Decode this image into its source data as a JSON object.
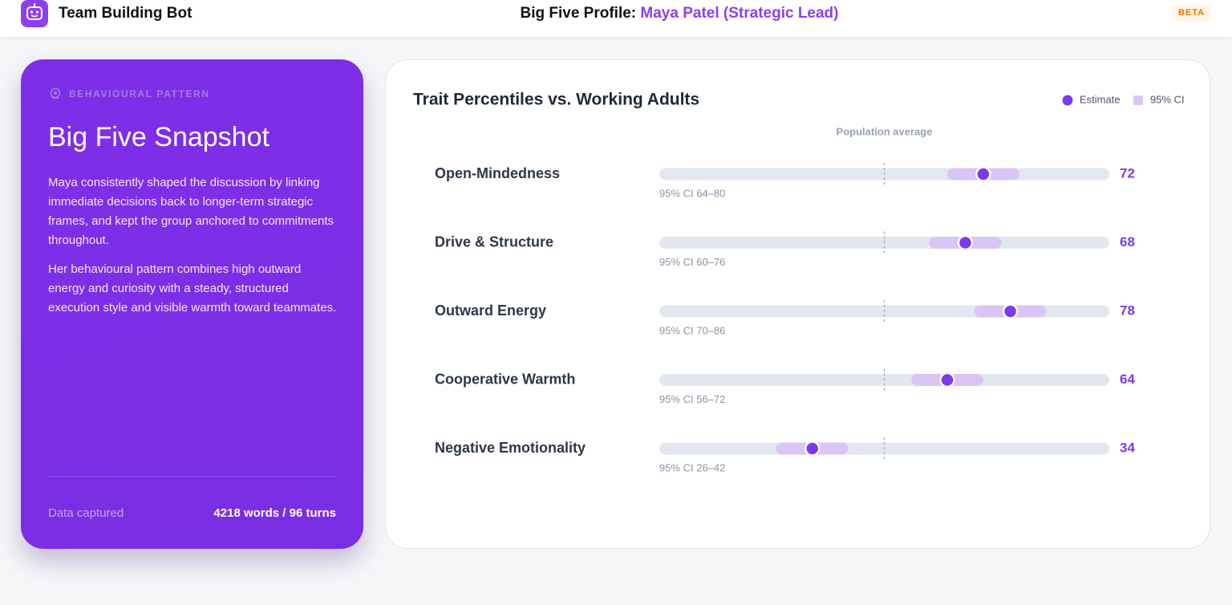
{
  "header": {
    "app_name": "Team Building Bot",
    "title_prefix": "Big Five Profile:",
    "title_name": "Maya Patel (Strategic Lead)",
    "badge": "BETA"
  },
  "snapshot": {
    "eyebrow": "BEHAVIOURAL PATTERN",
    "title": "Big Five Snapshot",
    "paragraphs": [
      "Maya consistently shaped the discussion by linking immediate decisions back to longer-term strategic frames, and kept the group anchored to commitments throughout.",
      "Her behavioural pattern combines high outward energy and curiosity with a steady, structured execution style and visible warmth toward teammates."
    ],
    "footer_label": "Data captured",
    "footer_value": "4218 words / 96 turns"
  },
  "chart_data": {
    "type": "dot-range",
    "title": "Trait Percentiles vs. Working Adults",
    "estimate_name": "Estimate",
    "estimate_color": "#7c3aed",
    "ci_name": "95% CI",
    "ci_color": "#d9c5f6",
    "reference": {
      "label": "Population average",
      "value": 50
    },
    "xlim": [
      0,
      100
    ],
    "categories": [
      "Open-Mindedness",
      "Drive & Structure",
      "Outward Energy",
      "Cooperative Warmth",
      "Negative Emotionality"
    ],
    "values": [
      72,
      68,
      78,
      64,
      34
    ],
    "ci_low": [
      64,
      60,
      70,
      56,
      26
    ],
    "ci_high": [
      80,
      76,
      86,
      72,
      42
    ],
    "ci_labels": [
      "95% CI 64–80",
      "95% CI 60–76",
      "95% CI 70–86",
      "95% CI 56–72",
      "95% CI 26–42"
    ]
  }
}
